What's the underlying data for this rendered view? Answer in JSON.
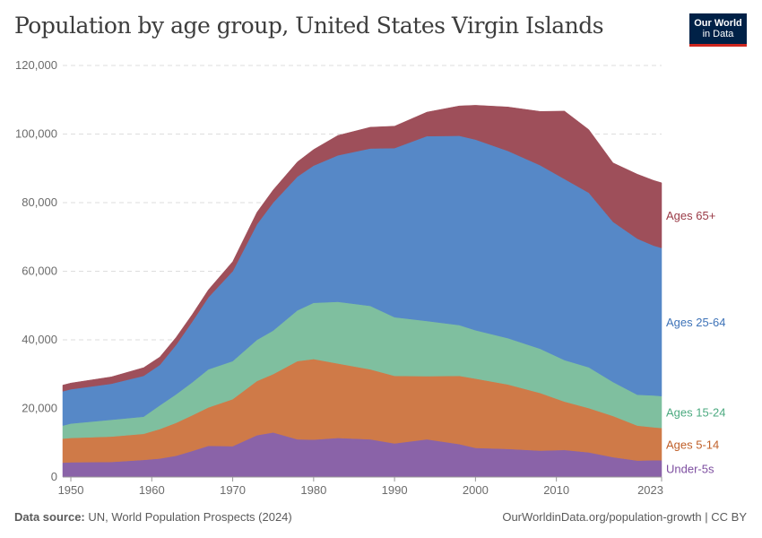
{
  "header": {
    "title": "Population by age group, United States Virgin Islands",
    "logo_line1": "Our World",
    "logo_line2": "in Data"
  },
  "footer": {
    "source_label": "Data source:",
    "source_text": "UN, World Population Prospects (2024)",
    "url_text": "OurWorldinData.org/population-growth | CC BY"
  },
  "colors": {
    "Under-5s": "#8a63a8",
    "Ages 5-14": "#cf7a48",
    "Ages 15-24": "#7fbf9f",
    "Ages 25-64": "#5688c7",
    "Ages 65+": "#9e4f5a",
    "label_Under-5s": "#7d4ea0",
    "label_Ages 5-14": "#c0602a",
    "label_Ages 15-24": "#4caa80",
    "label_Ages 25-64": "#3e73b8",
    "label_Ages 65+": "#9a3b47",
    "grid": "#dddddd",
    "tick": "#6b6b6b"
  },
  "chart_data": {
    "type": "area",
    "stacked": true,
    "title": "Population by age group, United States Virgin Islands",
    "xlabel": "",
    "ylabel": "",
    "xlim": [
      1949,
      2023
    ],
    "ylim": [
      0,
      120000
    ],
    "x_ticks": [
      "1950",
      "1960",
      "1970",
      "1980",
      "1990",
      "2000",
      "2010",
      "2023"
    ],
    "y_ticks": [
      "0",
      "20,000",
      "40,000",
      "60,000",
      "80,000",
      "100,000",
      "120,000"
    ],
    "x": [
      1949,
      1950,
      1955,
      1959,
      1961,
      1963,
      1965,
      1967,
      1970,
      1973,
      1975,
      1978,
      1980,
      1983,
      1987,
      1990,
      1994,
      1998,
      2000,
      2004,
      2008,
      2011,
      2014,
      2017,
      2020,
      2022,
      2023
    ],
    "series": [
      {
        "name": "Under-5s",
        "values": [
          4200,
          4300,
          4400,
          5000,
          5400,
          6200,
          7600,
          9100,
          9000,
          12200,
          13000,
          11000,
          10900,
          11400,
          11000,
          9800,
          11000,
          9600,
          8500,
          8200,
          7700,
          7900,
          7200,
          5800,
          4800,
          4900,
          4900
        ]
      },
      {
        "name": "Ages 5-14",
        "values": [
          7000,
          7100,
          7400,
          7600,
          8600,
          9600,
          10400,
          11200,
          13700,
          15800,
          17000,
          22800,
          23500,
          21700,
          20400,
          19700,
          18400,
          19900,
          20200,
          18800,
          16800,
          14100,
          12900,
          12000,
          10200,
          9600,
          9400
        ]
      },
      {
        "name": "Ages 15-24",
        "values": [
          3800,
          4200,
          4900,
          5000,
          6900,
          8300,
          9600,
          11100,
          11100,
          12000,
          12700,
          14800,
          16400,
          18000,
          18500,
          17100,
          16100,
          14800,
          14100,
          13500,
          12900,
          12100,
          11900,
          9900,
          9000,
          9300,
          9300
        ]
      },
      {
        "name": "Ages 25-64",
        "values": [
          10000,
          10000,
          10500,
          11900,
          11800,
          14400,
          17700,
          21000,
          26200,
          33700,
          37300,
          39000,
          40000,
          42700,
          45900,
          49300,
          53900,
          55200,
          55600,
          54600,
          53500,
          52800,
          50900,
          46700,
          45500,
          43700,
          43200
        ]
      },
      {
        "name": "Ages 65+",
        "values": [
          1800,
          1800,
          2000,
          2400,
          2300,
          2200,
          2100,
          2200,
          2800,
          3500,
          3700,
          4300,
          4700,
          5800,
          6200,
          6400,
          7000,
          8700,
          10000,
          12800,
          15700,
          19800,
          18400,
          17200,
          18800,
          19000,
          19000
        ]
      }
    ]
  }
}
